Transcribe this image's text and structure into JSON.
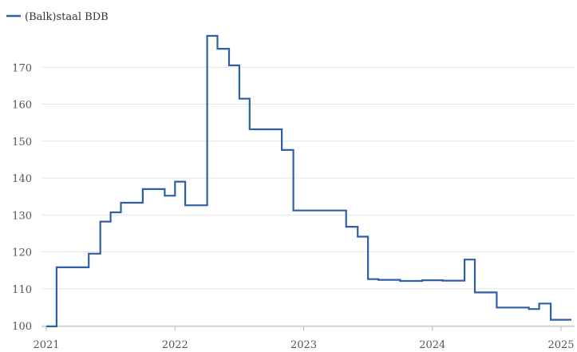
{
  "chart_data": {
    "type": "line",
    "step": true,
    "series": [
      {
        "name": "(Balk)staal BDB",
        "color": "#2f5fa8",
        "points": [
          [
            2021.0,
            99.8
          ],
          [
            2021.08,
            115.8
          ],
          [
            2021.33,
            119.5
          ],
          [
            2021.42,
            128.2
          ],
          [
            2021.5,
            130.7
          ],
          [
            2021.58,
            133.3
          ],
          [
            2021.75,
            137.0
          ],
          [
            2021.92,
            135.2
          ],
          [
            2022.0,
            139.0
          ],
          [
            2022.08,
            132.6
          ],
          [
            2022.25,
            178.5
          ],
          [
            2022.33,
            175.0
          ],
          [
            2022.42,
            170.5
          ],
          [
            2022.5,
            161.5
          ],
          [
            2022.58,
            153.2
          ],
          [
            2022.83,
            147.6
          ],
          [
            2022.92,
            131.2
          ],
          [
            2023.33,
            126.8
          ],
          [
            2023.42,
            124.1
          ],
          [
            2023.5,
            112.6
          ],
          [
            2023.58,
            112.4
          ],
          [
            2023.75,
            112.1
          ],
          [
            2023.92,
            112.3
          ],
          [
            2024.08,
            112.2
          ],
          [
            2024.25,
            117.9
          ],
          [
            2024.33,
            109.0
          ],
          [
            2024.5,
            104.9
          ],
          [
            2024.75,
            104.5
          ],
          [
            2024.83,
            106.0
          ],
          [
            2024.92,
            101.6
          ],
          [
            2025.08,
            101.6
          ]
        ]
      }
    ],
    "x_ticks": [
      "2021",
      "2022",
      "2023",
      "2024",
      "2025"
    ],
    "y_ticks": [
      "100",
      "110",
      "120",
      "130",
      "140",
      "150",
      "160",
      "170"
    ],
    "xlim": [
      2021,
      2025.1
    ],
    "ylim": [
      100,
      180
    ],
    "grid": "horizontal",
    "legend_position": "top-left",
    "title": "",
    "xlabel": "",
    "ylabel": ""
  }
}
